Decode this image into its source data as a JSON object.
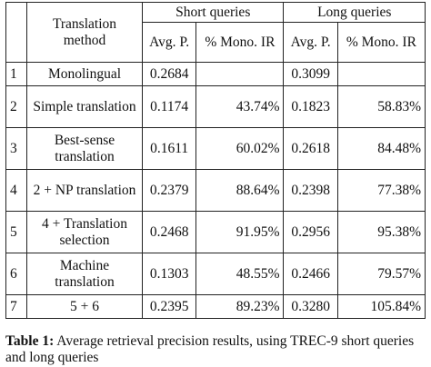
{
  "header": {
    "method": "Translation method",
    "short": "Short queries",
    "long": "Long queries",
    "avg": "Avg. P.",
    "mono": "% Mono. IR"
  },
  "rows": [
    {
      "n": "1",
      "method": "Monolingual",
      "s_avg": "0.2684",
      "s_mono": "",
      "l_avg": "0.3099",
      "l_mono": ""
    },
    {
      "n": "2",
      "method": "Simple translation",
      "s_avg": "0.1174",
      "s_mono": "43.74%",
      "l_avg": "0.1823",
      "l_mono": "58.83%"
    },
    {
      "n": "3",
      "method": "Best-sense translation",
      "s_avg": "0.1611",
      "s_mono": "60.02%",
      "l_avg": "0.2618",
      "l_mono": "84.48%"
    },
    {
      "n": "4",
      "method": "2 + NP translation",
      "s_avg": "0.2379",
      "s_mono": "88.64%",
      "l_avg": "0.2398",
      "l_mono": "77.38%"
    },
    {
      "n": "5",
      "method": "4 + Translation selection",
      "s_avg": "0.2468",
      "s_mono": "91.95%",
      "l_avg": "0.2956",
      "l_mono": "95.38%"
    },
    {
      "n": "6",
      "method": "Machine translation",
      "s_avg": "0.1303",
      "s_mono": "48.55%",
      "l_avg": "0.2466",
      "l_mono": "79.57%"
    },
    {
      "n": "7",
      "method": "5 + 6",
      "s_avg": "0.2395",
      "s_mono": "89.23%",
      "l_avg": "0.3280",
      "l_mono": "105.84%"
    }
  ],
  "caption": {
    "label": "Table 1:",
    "text": " Average retrieval precision results, using TREC-9 short queries and long queries"
  }
}
